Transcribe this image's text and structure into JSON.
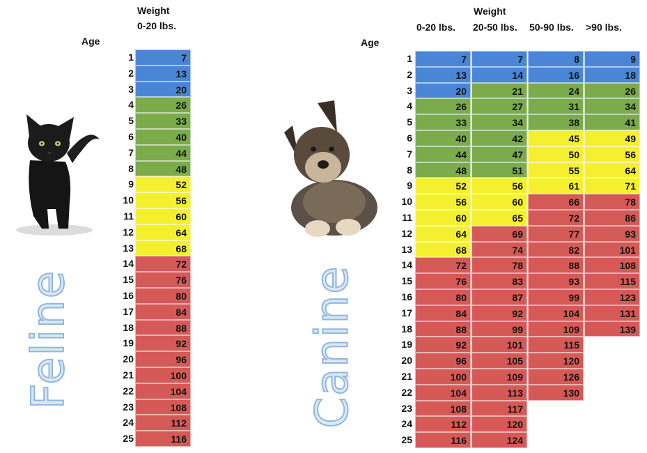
{
  "colors": {
    "blue": "#4a86d6",
    "green": "#7bab4a",
    "yellow": "#f4f030",
    "red": "#d55a57"
  },
  "feline": {
    "title": "Feline",
    "weight_label": "Weight",
    "age_label": "Age",
    "columns": [
      "0-20 lbs."
    ],
    "ages": [
      1,
      2,
      3,
      4,
      5,
      6,
      7,
      8,
      9,
      10,
      11,
      12,
      13,
      14,
      15,
      16,
      17,
      18,
      19,
      20,
      21,
      22,
      23,
      24,
      25
    ],
    "values": [
      [
        7
      ],
      [
        13
      ],
      [
        20
      ],
      [
        26
      ],
      [
        33
      ],
      [
        40
      ],
      [
        44
      ],
      [
        48
      ],
      [
        52
      ],
      [
        56
      ],
      [
        60
      ],
      [
        64
      ],
      [
        68
      ],
      [
        72
      ],
      [
        76
      ],
      [
        80
      ],
      [
        84
      ],
      [
        88
      ],
      [
        92
      ],
      [
        96
      ],
      [
        100
      ],
      [
        104
      ],
      [
        108
      ],
      [
        112
      ],
      [
        116
      ]
    ],
    "colors": [
      [
        "blue"
      ],
      [
        "blue"
      ],
      [
        "blue"
      ],
      [
        "green"
      ],
      [
        "green"
      ],
      [
        "green"
      ],
      [
        "green"
      ],
      [
        "green"
      ],
      [
        "yellow"
      ],
      [
        "yellow"
      ],
      [
        "yellow"
      ],
      [
        "yellow"
      ],
      [
        "yellow"
      ],
      [
        "red"
      ],
      [
        "red"
      ],
      [
        "red"
      ],
      [
        "red"
      ],
      [
        "red"
      ],
      [
        "red"
      ],
      [
        "red"
      ],
      [
        "red"
      ],
      [
        "red"
      ],
      [
        "red"
      ],
      [
        "red"
      ],
      [
        "red"
      ]
    ]
  },
  "canine": {
    "title": "Canine",
    "weight_label": "Weight",
    "age_label": "Age",
    "columns": [
      "0-20 lbs.",
      "20-50 lbs.",
      "50-90 lbs.",
      ">90 lbs."
    ],
    "ages": [
      1,
      2,
      3,
      4,
      5,
      6,
      7,
      8,
      9,
      10,
      11,
      12,
      13,
      14,
      15,
      16,
      17,
      18,
      19,
      20,
      21,
      22,
      23,
      24,
      25
    ],
    "values": [
      [
        7,
        7,
        8,
        9
      ],
      [
        13,
        14,
        16,
        18
      ],
      [
        20,
        21,
        24,
        26
      ],
      [
        26,
        27,
        31,
        34
      ],
      [
        33,
        34,
        38,
        41
      ],
      [
        40,
        42,
        45,
        49
      ],
      [
        44,
        47,
        50,
        56
      ],
      [
        48,
        51,
        55,
        64
      ],
      [
        52,
        56,
        61,
        71
      ],
      [
        56,
        60,
        66,
        78
      ],
      [
        60,
        65,
        72,
        86
      ],
      [
        64,
        69,
        77,
        93
      ],
      [
        68,
        74,
        82,
        101
      ],
      [
        72,
        78,
        88,
        108
      ],
      [
        76,
        83,
        93,
        115
      ],
      [
        80,
        87,
        99,
        123
      ],
      [
        84,
        92,
        104,
        131
      ],
      [
        88,
        99,
        109,
        139
      ],
      [
        92,
        101,
        115,
        null
      ],
      [
        96,
        105,
        120,
        null
      ],
      [
        100,
        109,
        126,
        null
      ],
      [
        104,
        113,
        130,
        null
      ],
      [
        108,
        117,
        null,
        null
      ],
      [
        112,
        120,
        null,
        null
      ],
      [
        116,
        124,
        null,
        null
      ]
    ],
    "colors": [
      [
        "blue",
        "blue",
        "blue",
        "blue"
      ],
      [
        "blue",
        "blue",
        "blue",
        "blue"
      ],
      [
        "blue",
        "green",
        "green",
        "green"
      ],
      [
        "green",
        "green",
        "green",
        "green"
      ],
      [
        "green",
        "green",
        "green",
        "green"
      ],
      [
        "green",
        "green",
        "yellow",
        "yellow"
      ],
      [
        "green",
        "green",
        "yellow",
        "yellow"
      ],
      [
        "green",
        "green",
        "yellow",
        "yellow"
      ],
      [
        "yellow",
        "yellow",
        "yellow",
        "yellow"
      ],
      [
        "yellow",
        "yellow",
        "red",
        "red"
      ],
      [
        "yellow",
        "yellow",
        "red",
        "red"
      ],
      [
        "yellow",
        "red",
        "red",
        "red"
      ],
      [
        "yellow",
        "red",
        "red",
        "red"
      ],
      [
        "red",
        "red",
        "red",
        "red"
      ],
      [
        "red",
        "red",
        "red",
        "red"
      ],
      [
        "red",
        "red",
        "red",
        "red"
      ],
      [
        "red",
        "red",
        "red",
        "red"
      ],
      [
        "red",
        "red",
        "red",
        "red"
      ],
      [
        "red",
        "red",
        "red",
        null
      ],
      [
        "red",
        "red",
        "red",
        null
      ],
      [
        "red",
        "red",
        "red",
        null
      ],
      [
        "red",
        "red",
        "red",
        null
      ],
      [
        "red",
        "red",
        null,
        null
      ],
      [
        "red",
        "red",
        null,
        null
      ],
      [
        "red",
        "red",
        null,
        null
      ]
    ]
  },
  "chart_data": [
    {
      "type": "table",
      "title": "Feline",
      "xlabel": "Weight",
      "ylabel": "Age",
      "categories": [
        "0-20 lbs."
      ],
      "x": [
        1,
        2,
        3,
        4,
        5,
        6,
        7,
        8,
        9,
        10,
        11,
        12,
        13,
        14,
        15,
        16,
        17,
        18,
        19,
        20,
        21,
        22,
        23,
        24,
        25
      ],
      "series": [
        {
          "name": "0-20 lbs.",
          "values": [
            7,
            13,
            20,
            26,
            33,
            40,
            44,
            48,
            52,
            56,
            60,
            64,
            68,
            72,
            76,
            80,
            84,
            88,
            92,
            96,
            100,
            104,
            108,
            112,
            116
          ]
        }
      ]
    },
    {
      "type": "table",
      "title": "Canine",
      "xlabel": "Weight",
      "ylabel": "Age",
      "categories": [
        "0-20 lbs.",
        "20-50 lbs.",
        "50-90 lbs.",
        ">90 lbs."
      ],
      "x": [
        1,
        2,
        3,
        4,
        5,
        6,
        7,
        8,
        9,
        10,
        11,
        12,
        13,
        14,
        15,
        16,
        17,
        18,
        19,
        20,
        21,
        22,
        23,
        24,
        25
      ],
      "series": [
        {
          "name": "0-20 lbs.",
          "values": [
            7,
            13,
            20,
            26,
            33,
            40,
            44,
            48,
            52,
            56,
            60,
            64,
            68,
            72,
            76,
            80,
            84,
            88,
            92,
            96,
            100,
            104,
            108,
            112,
            116
          ]
        },
        {
          "name": "20-50 lbs.",
          "values": [
            7,
            14,
            21,
            27,
            34,
            42,
            47,
            51,
            56,
            60,
            65,
            69,
            74,
            78,
            83,
            87,
            92,
            99,
            101,
            105,
            109,
            113,
            117,
            120,
            124
          ]
        },
        {
          "name": "50-90 lbs.",
          "values": [
            8,
            16,
            24,
            31,
            38,
            45,
            50,
            55,
            61,
            66,
            72,
            77,
            82,
            88,
            93,
            99,
            104,
            109,
            115,
            120,
            126,
            130,
            null,
            null,
            null
          ]
        },
        {
          "name": ">90 lbs.",
          "values": [
            9,
            18,
            26,
            34,
            41,
            49,
            56,
            64,
            71,
            78,
            86,
            93,
            101,
            108,
            115,
            123,
            131,
            139,
            null,
            null,
            null,
            null,
            null,
            null,
            null
          ]
        }
      ]
    }
  ]
}
